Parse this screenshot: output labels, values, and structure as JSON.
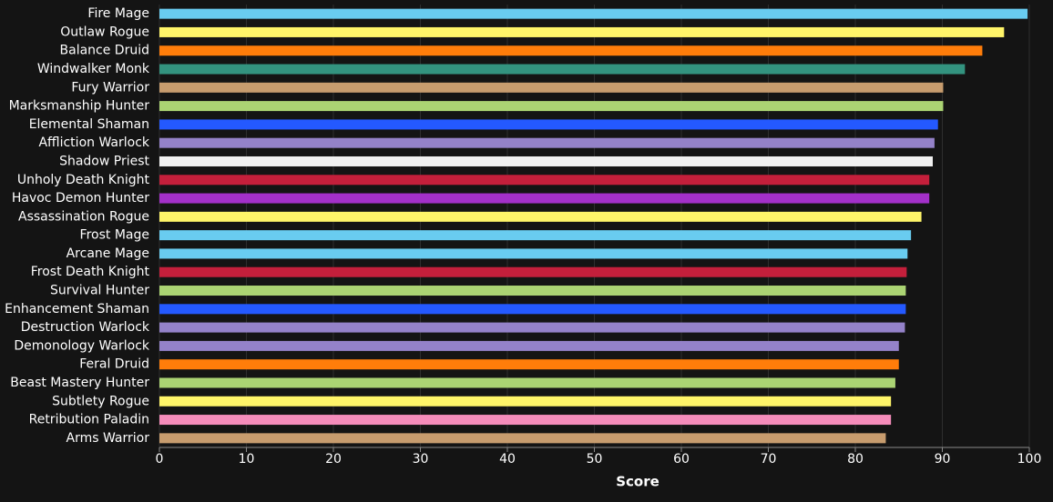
{
  "chart_data": {
    "type": "hbar",
    "x_label": "Score",
    "categories": [
      "Fire Mage",
      "Outlaw Rogue",
      "Balance Druid",
      "Windwalker Monk",
      "Fury Warrior",
      "Marksmanship Hunter",
      "Elemental Shaman",
      "Affliction Warlock",
      "Shadow Priest",
      "Unholy Death Knight",
      "Havoc Demon Hunter",
      "Assassination Rogue",
      "Frost Mage",
      "Arcane Mage",
      "Frost Death Knight",
      "Survival Hunter",
      "Enhancement Shaman",
      "Destruction Warlock",
      "Demonology Warlock",
      "Feral Druid",
      "Beast Mastery Hunter",
      "Subtlety Rogue",
      "Retribution Paladin",
      "Arms Warrior"
    ],
    "values": [
      99.8,
      97.1,
      94.6,
      92.6,
      90.1,
      90.1,
      89.5,
      89.1,
      88.9,
      88.5,
      88.5,
      87.6,
      86.4,
      86.0,
      85.9,
      85.8,
      85.8,
      85.7,
      85.0,
      85.0,
      84.6,
      84.1,
      84.1,
      83.5
    ],
    "colors": [
      "#69ccf0",
      "#fff569",
      "#ff7d0a",
      "#33937f",
      "#c79c6e",
      "#abd473",
      "#2459ff",
      "#9482c9",
      "#f0f0f0",
      "#c41f3b",
      "#a330c9",
      "#fff569",
      "#69ccf0",
      "#69ccf0",
      "#c41f3b",
      "#abd473",
      "#2459ff",
      "#9482c9",
      "#9482c9",
      "#ff7d0a",
      "#abd473",
      "#fff569",
      "#f58cba",
      "#c79c6e"
    ],
    "xlim": [
      0,
      100
    ],
    "xticks": [
      0,
      10,
      20,
      30,
      40,
      50,
      60,
      70,
      80,
      90,
      100
    ],
    "grid": true
  }
}
